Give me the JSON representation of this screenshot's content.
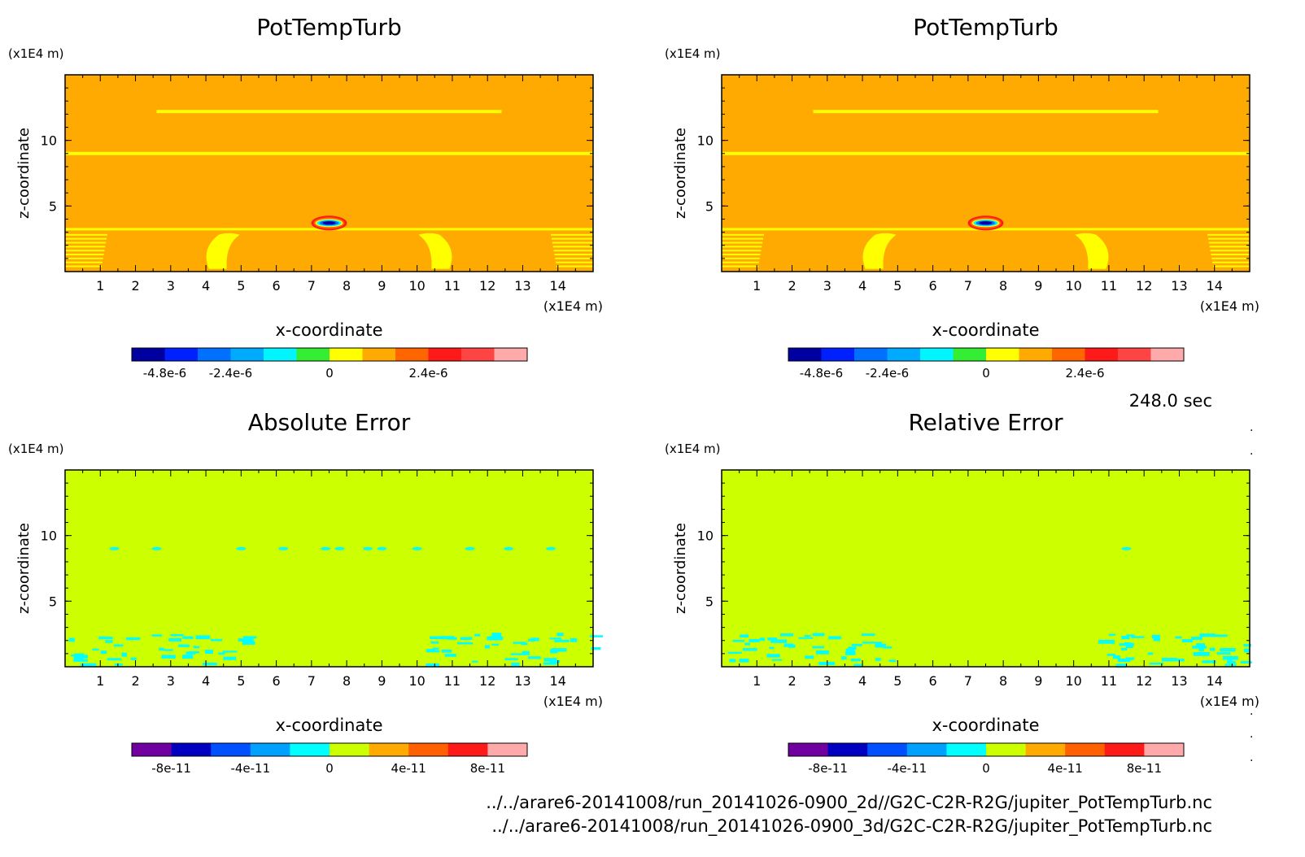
{
  "time_label": "248.0 sec",
  "footer": {
    "path_1": "../../arare6-20141008/run_20141026-0900_2d//G2C-C2R-R2G/jupiter_PotTempTurb.nc",
    "path_2": "../../arare6-20141008/run_20141026-0900_3d/G2C-C2R-R2G/jupiter_PotTempTurb.nc"
  },
  "chart_data": [
    {
      "type": "heatmap",
      "title": "PotTempTurb",
      "xlabel": "x-coordinate",
      "ylabel": "z-coordinate",
      "x_unit": "(x1E4 m)",
      "y_unit": "(x1E4 m)",
      "xlim": [
        0,
        15
      ],
      "ylim": [
        0,
        15
      ],
      "x_ticks": [
        "1",
        "2",
        "3",
        "4",
        "5",
        "6",
        "7",
        "8",
        "9",
        "10",
        "11",
        "12",
        "13",
        "14"
      ],
      "y_ticks": [
        "5",
        "10"
      ],
      "background_color": "#ffaa00",
      "features": {
        "horizontal_bands_z": [
          12.2,
          9.0,
          3.2
        ],
        "anomaly_center": [
          7.5,
          3.7
        ],
        "side_plumes_x": [
          4.5,
          10.5
        ]
      },
      "colorbar": {
        "colors": [
          "#0000a0",
          "#0020ff",
          "#0070ff",
          "#00aaff",
          "#00f5ff",
          "#33ee33",
          "#ffff00",
          "#ffaa00",
          "#ff6600",
          "#ff1a1a",
          "#ff4444",
          "#ffaaaa"
        ],
        "tick_labels": [
          "-4.8e-6",
          "-2.4e-6",
          "0",
          "2.4e-6"
        ]
      }
    },
    {
      "type": "heatmap",
      "title": "PotTempTurb",
      "xlabel": "x-coordinate",
      "ylabel": "z-coordinate",
      "x_unit": "(x1E4 m)",
      "y_unit": "(x1E4 m)",
      "xlim": [
        0,
        15
      ],
      "ylim": [
        0,
        15
      ],
      "x_ticks": [
        "1",
        "2",
        "3",
        "4",
        "5",
        "6",
        "7",
        "8",
        "9",
        "10",
        "11",
        "12",
        "13",
        "14"
      ],
      "y_ticks": [
        "5",
        "10"
      ],
      "background_color": "#ffaa00",
      "features": {
        "horizontal_bands_z": [
          12.2,
          9.0,
          3.2
        ],
        "anomaly_center": [
          7.5,
          3.7
        ],
        "side_plumes_x": [
          4.5,
          10.5
        ]
      },
      "colorbar": {
        "colors": [
          "#0000a0",
          "#0020ff",
          "#0070ff",
          "#00aaff",
          "#00f5ff",
          "#33ee33",
          "#ffff00",
          "#ffaa00",
          "#ff6600",
          "#ff1a1a",
          "#ff4444",
          "#ffaaaa"
        ],
        "tick_labels": [
          "-4.8e-6",
          "-2.4e-6",
          "0",
          "2.4e-6"
        ]
      }
    },
    {
      "type": "heatmap",
      "title": "Absolute Error",
      "xlabel": "x-coordinate",
      "ylabel": "z-coordinate",
      "x_unit": "(x1E4 m)",
      "y_unit": "(x1E4 m)",
      "xlim": [
        0,
        15
      ],
      "ylim": [
        0,
        15
      ],
      "x_ticks": [
        "1",
        "2",
        "3",
        "4",
        "5",
        "6",
        "7",
        "8",
        "9",
        "10",
        "11",
        "12",
        "13",
        "14"
      ],
      "y_ticks": [
        "5",
        "10"
      ],
      "background_color": "#ccff00",
      "features": {
        "cyan_spots_z9_x": [
          1.4,
          2.6,
          5.0,
          6.2,
          7.4,
          7.8,
          8.6,
          9.0,
          10.0,
          11.5,
          12.6,
          13.8
        ],
        "near_surface_patches_x": [
          [
            0,
            5.2
          ],
          [
            10,
            15
          ]
        ]
      },
      "colorbar": {
        "colors": [
          "#7000a0",
          "#0000c0",
          "#0050ff",
          "#00a0ff",
          "#00ffff",
          "#ccff00",
          "#ffaa00",
          "#ff6000",
          "#ff1a1a",
          "#ffaaaa"
        ],
        "tick_labels": [
          "-8e-11",
          "-4e-11",
          "0",
          "4e-11",
          "8e-11"
        ]
      }
    },
    {
      "type": "heatmap",
      "title": "Relative Error",
      "xlabel": "x-coordinate",
      "ylabel": "z-coordinate",
      "x_unit": "(x1E4 m)",
      "y_unit": "(x1E4 m)",
      "xlim": [
        0,
        15
      ],
      "ylim": [
        0,
        15
      ],
      "x_ticks": [
        "1",
        "2",
        "3",
        "4",
        "5",
        "6",
        "7",
        "8",
        "9",
        "10",
        "11",
        "12",
        "13",
        "14"
      ],
      "y_ticks": [
        "5",
        "10"
      ],
      "background_color": "#ccff00",
      "features": {
        "cyan_spots_z9_x": [
          11.5
        ],
        "near_surface_patches_x": [
          [
            0,
            4.8
          ],
          [
            10.5,
            15
          ]
        ]
      },
      "colorbar": {
        "colors": [
          "#7000a0",
          "#0000c0",
          "#0050ff",
          "#00a0ff",
          "#00ffff",
          "#ccff00",
          "#ffaa00",
          "#ff6000",
          "#ff1a1a",
          "#ffaaaa"
        ],
        "tick_labels": [
          "-8e-11",
          "-4e-11",
          "0",
          "4e-11",
          "8e-11"
        ]
      }
    }
  ]
}
